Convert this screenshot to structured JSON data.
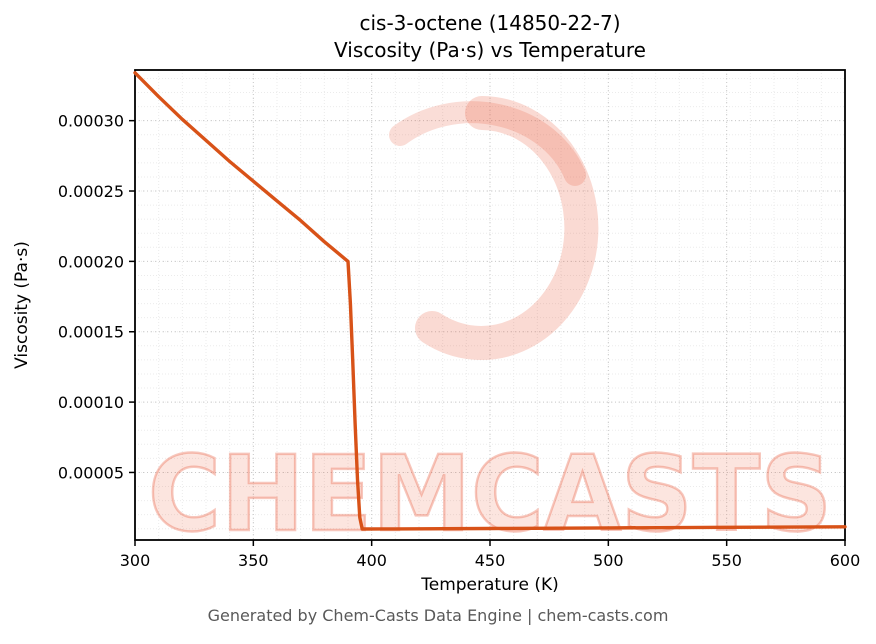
{
  "watermark": {
    "text": "CHEMCASTS"
  },
  "footer": {
    "text": "Generated by Chem-Casts Data Engine | chem-casts.com"
  },
  "chart_data": {
    "type": "line",
    "title": "cis-3-octene (14850-22-7)\nViscosity (Pa·s) vs Temperature",
    "title_lines": [
      "cis-3-octene (14850-22-7)",
      "Viscosity (Pa·s) vs Temperature"
    ],
    "xlabel": "Temperature (K)",
    "ylabel": "Viscosity (Pa·s)",
    "xlim": [
      300,
      600
    ],
    "ylim": [
      2e-06,
      0.000336
    ],
    "x_ticks": [
      300,
      350,
      400,
      450,
      500,
      550,
      600
    ],
    "y_tick_values": [
      5e-05,
      0.0001,
      0.00015,
      0.0002,
      0.00025,
      0.0003
    ],
    "y_tick_labels": [
      "0.00005",
      "0.00010",
      "0.00015",
      "0.00020",
      "0.00025",
      "0.00030"
    ],
    "x_minor_step": 10,
    "y_minor_step": 1e-05,
    "grid": true,
    "legend": "none",
    "line_color": "#d85218",
    "series": [
      {
        "name": "viscosity",
        "points": [
          [
            300,
            0.000334
          ],
          [
            310,
            0.000317
          ],
          [
            320,
            0.000301
          ],
          [
            330,
            0.000286
          ],
          [
            340,
            0.000271
          ],
          [
            350,
            0.000257
          ],
          [
            360,
            0.000243
          ],
          [
            370,
            0.000229
          ],
          [
            380,
            0.000214
          ],
          [
            390,
            0.0002
          ],
          [
            391,
            0.00017
          ],
          [
            392,
            0.00013
          ],
          [
            393,
            8.5e-05
          ],
          [
            394,
            4.5e-05
          ],
          [
            395,
            1.8e-05
          ],
          [
            396,
            9.8e-06
          ],
          [
            410,
            9.9e-06
          ],
          [
            450,
            1.02e-05
          ],
          [
            500,
            1.06e-05
          ],
          [
            550,
            1.1e-05
          ],
          [
            600,
            1.14e-05
          ]
        ]
      }
    ]
  }
}
